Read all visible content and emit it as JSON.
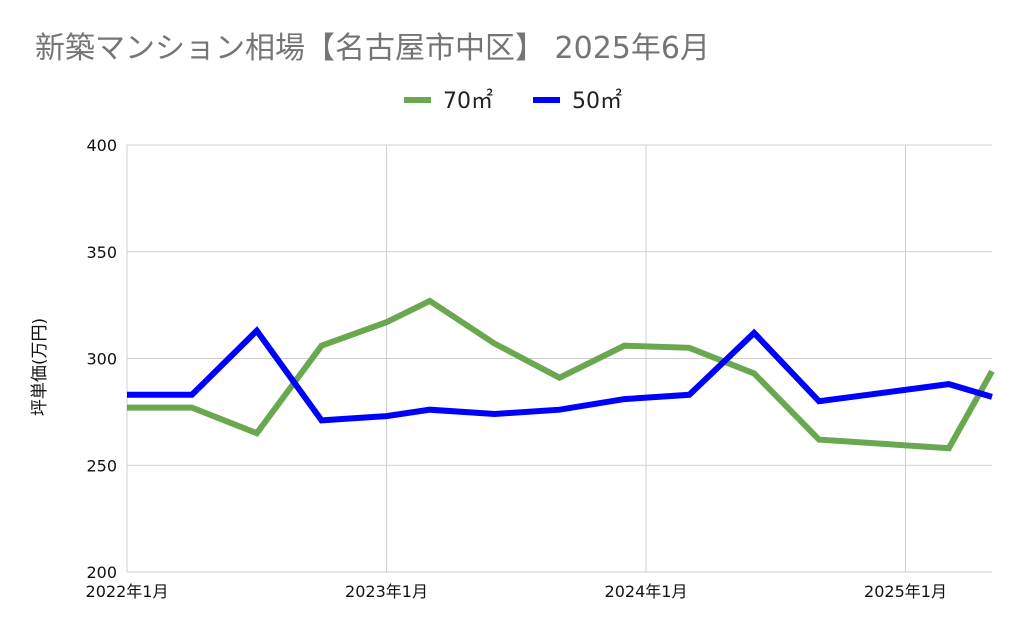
{
  "chart_data": {
    "type": "line",
    "title": "新築マンション相場【名古屋市中区】 2025年6月",
    "ylabel": "坪単価(万円)",
    "xlabel": "",
    "ylim": [
      200,
      400
    ],
    "yticks": [
      200,
      250,
      300,
      350,
      400
    ],
    "x_range": [
      "2022-01",
      "2025-05"
    ],
    "x_tick_labels": [
      "2022年1月",
      "2023年1月",
      "2024年1月",
      "2025年1月"
    ],
    "legend_position": "top-center",
    "grid": true,
    "x": [
      "2022-01",
      "2022-04",
      "2022-07",
      "2022-10",
      "2023-01",
      "2023-03",
      "2023-06",
      "2023-09",
      "2023-12",
      "2024-03",
      "2024-06",
      "2024-09",
      "2024-12",
      "2025-03",
      "2025-05"
    ],
    "series": [
      {
        "name": "70㎡",
        "color": "#6aa84f",
        "values": [
          277,
          277,
          265,
          306,
          317,
          327,
          307,
          291,
          306,
          305,
          293,
          262,
          260,
          258,
          294
        ]
      },
      {
        "name": "50㎡",
        "color": "#0000ff",
        "values": [
          283,
          283,
          313,
          271,
          273,
          276,
          274,
          276,
          281,
          283,
          312,
          280,
          284,
          288,
          282
        ]
      }
    ]
  }
}
